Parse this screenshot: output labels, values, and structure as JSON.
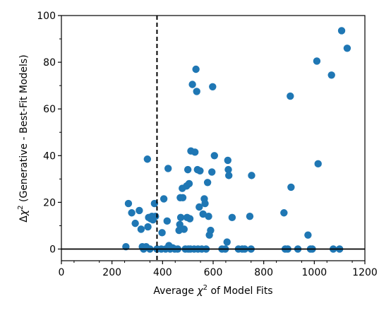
{
  "chart_data": {
    "type": "scatter",
    "xlabel_prefix": "Average ",
    "xlabel_symbol": "χ",
    "xlabel_sup": "2",
    "xlabel_suffix": " of Model Fits",
    "ylabel_prefix": "Δ",
    "ylabel_symbol": "χ",
    "ylabel_sup": "2",
    "ylabel_suffix": " (Generative - Best-Fit Models)",
    "xlim": [
      0,
      1200
    ],
    "ylim": [
      -5,
      100
    ],
    "xticks": [
      0,
      200,
      400,
      600,
      800,
      1000,
      1200
    ],
    "yticks": [
      0,
      20,
      40,
      60,
      80,
      100
    ],
    "xtick_labels": [
      "0",
      "200",
      "400",
      "600",
      "800",
      "1000",
      "1200"
    ],
    "ytick_labels": [
      "0",
      "20",
      "40",
      "60",
      "80",
      "100"
    ],
    "vline_x": 378,
    "hline_y": 0,
    "marker_color": "#1f77b4",
    "points": [
      [
        255,
        1
      ],
      [
        265,
        19.5
      ],
      [
        278,
        15.5
      ],
      [
        292,
        11
      ],
      [
        308,
        16.5
      ],
      [
        315,
        8.5
      ],
      [
        320,
        1
      ],
      [
        325,
        0
      ],
      [
        335,
        1
      ],
      [
        340,
        38.5
      ],
      [
        342,
        9.5
      ],
      [
        345,
        13.5
      ],
      [
        350,
        0
      ],
      [
        353,
        13
      ],
      [
        358,
        14
      ],
      [
        362,
        12.5
      ],
      [
        365,
        13.5
      ],
      [
        368,
        19.5
      ],
      [
        372,
        14
      ],
      [
        378,
        0
      ],
      [
        395,
        0
      ],
      [
        398,
        7
      ],
      [
        405,
        21.5
      ],
      [
        412,
        0
      ],
      [
        418,
        12
      ],
      [
        422,
        34.5
      ],
      [
        425,
        1.5
      ],
      [
        430,
        0
      ],
      [
        440,
        0.5
      ],
      [
        448,
        0
      ],
      [
        460,
        0
      ],
      [
        465,
        8
      ],
      [
        468,
        10.5
      ],
      [
        470,
        22
      ],
      [
        472,
        13.5
      ],
      [
        478,
        26
      ],
      [
        480,
        22
      ],
      [
        485,
        8.5
      ],
      [
        490,
        0
      ],
      [
        495,
        27
      ],
      [
        497,
        13.5
      ],
      [
        500,
        34
      ],
      [
        502,
        0
      ],
      [
        505,
        28
      ],
      [
        508,
        13
      ],
      [
        510,
        0
      ],
      [
        512,
        42
      ],
      [
        518,
        70.5
      ],
      [
        525,
        0
      ],
      [
        528,
        41.5
      ],
      [
        532,
        77
      ],
      [
        535,
        67.5
      ],
      [
        538,
        34
      ],
      [
        540,
        0
      ],
      [
        545,
        18
      ],
      [
        548,
        33.5
      ],
      [
        555,
        0
      ],
      [
        560,
        15
      ],
      [
        565,
        21.5
      ],
      [
        568,
        19.5
      ],
      [
        572,
        0
      ],
      [
        578,
        28.5
      ],
      [
        582,
        14
      ],
      [
        585,
        6
      ],
      [
        590,
        8
      ],
      [
        595,
        33
      ],
      [
        598,
        69.5
      ],
      [
        605,
        40
      ],
      [
        635,
        0
      ],
      [
        648,
        0
      ],
      [
        655,
        3
      ],
      [
        658,
        38
      ],
      [
        660,
        34
      ],
      [
        662,
        31.5
      ],
      [
        675,
        13.5
      ],
      [
        700,
        0
      ],
      [
        715,
        0
      ],
      [
        725,
        0
      ],
      [
        745,
        14
      ],
      [
        750,
        0
      ],
      [
        752,
        31.5
      ],
      [
        880,
        15.5
      ],
      [
        885,
        0
      ],
      [
        895,
        0
      ],
      [
        905,
        65.5
      ],
      [
        908,
        26.5
      ],
      [
        935,
        0
      ],
      [
        975,
        6
      ],
      [
        985,
        0
      ],
      [
        992,
        0
      ],
      [
        1010,
        80.5
      ],
      [
        1015,
        36.5
      ],
      [
        1068,
        74.5
      ],
      [
        1075,
        0
      ],
      [
        1100,
        0
      ],
      [
        1108,
        93.5
      ],
      [
        1130,
        86
      ]
    ]
  }
}
